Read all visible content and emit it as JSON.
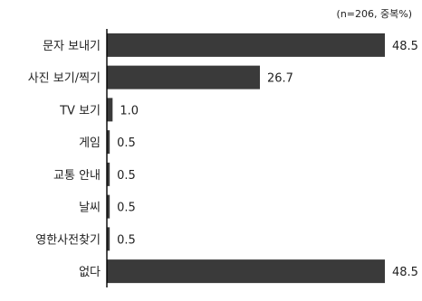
{
  "chart_data": {
    "type": "bar",
    "orientation": "horizontal",
    "note": "(n=206, 중복%)",
    "categories": [
      "문자 보내기",
      "사진 보기/찍기",
      "TV 보기",
      "게임",
      "교통 안내",
      "날씨",
      "영한사전찾기",
      "없다"
    ],
    "values": [
      48.5,
      26.7,
      1.0,
      0.5,
      0.5,
      0.5,
      0.5,
      48.5
    ],
    "value_labels": [
      "48.5",
      "26.7",
      "1.0",
      "0.5",
      "0.5",
      "0.5",
      "0.5",
      "48.5"
    ],
    "xlim": [
      0,
      48.5
    ],
    "grid": false,
    "bar_color": "#3a3a3a"
  }
}
